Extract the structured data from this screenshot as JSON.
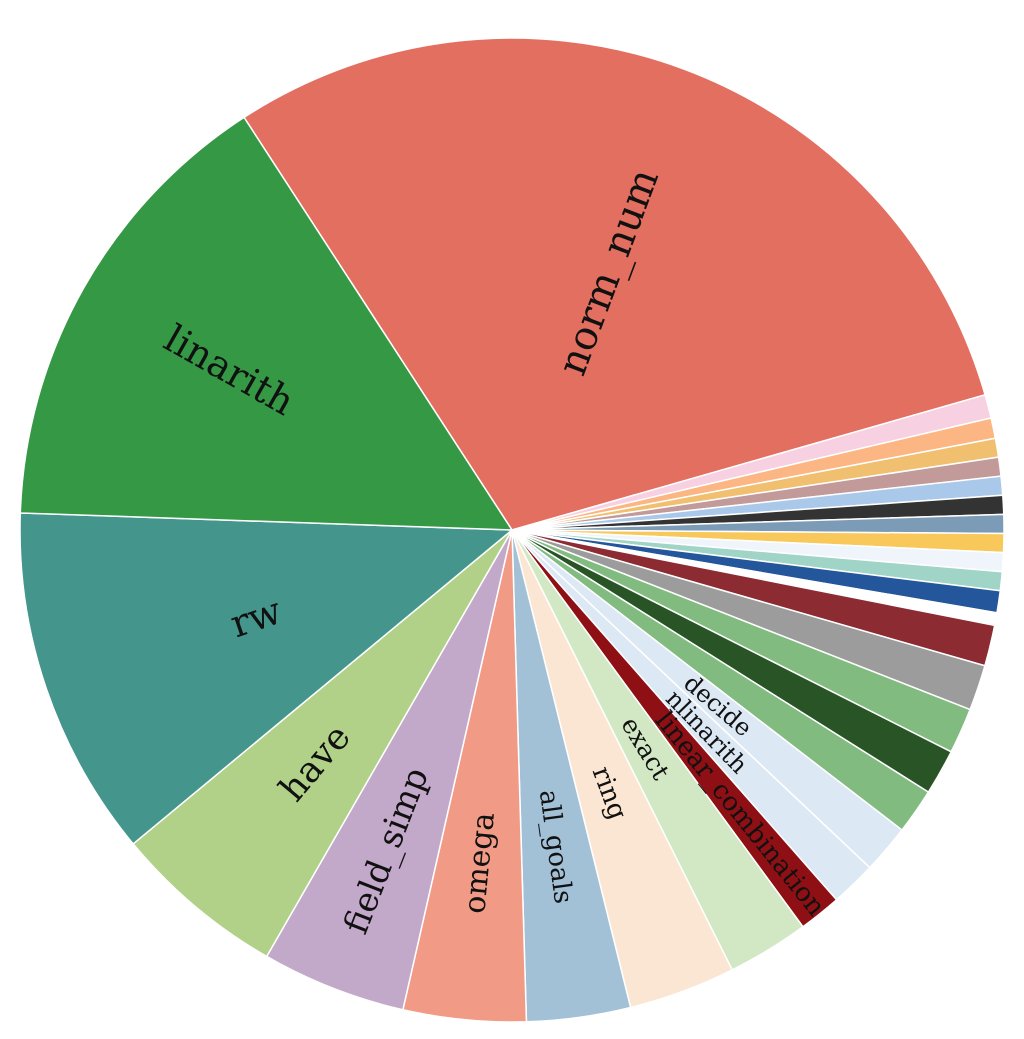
{
  "chart_data": {
    "type": "pie",
    "title": "",
    "start_angle_deg": -123,
    "direction": "clockwise",
    "slices": [
      {
        "label": "norm_num",
        "value": 28.8,
        "color": "#e36f60",
        "show_label": true
      },
      {
        "label": "",
        "value": 0.75,
        "color": "#f7d0e1",
        "show_label": false
      },
      {
        "label": "",
        "value": 0.65,
        "color": "#fcb683",
        "show_label": false
      },
      {
        "label": "",
        "value": 0.6,
        "color": "#f0c070",
        "show_label": false
      },
      {
        "label": "",
        "value": 0.6,
        "color": "#c29a9a",
        "show_label": false
      },
      {
        "label": "",
        "value": 0.6,
        "color": "#aac9ea",
        "show_label": false
      },
      {
        "label": "",
        "value": 0.6,
        "color": "#333333",
        "show_label": false
      },
      {
        "label": "",
        "value": 0.6,
        "color": "#7c9bb7",
        "show_label": false
      },
      {
        "label": "",
        "value": 0.6,
        "color": "#f8c95a",
        "show_label": false
      },
      {
        "label": "",
        "value": 0.6,
        "color": "#eff5fb",
        "show_label": false
      },
      {
        "label": "",
        "value": 0.6,
        "color": "#9fd4c6",
        "show_label": false
      },
      {
        "label": "",
        "value": 0.7,
        "color": "#24569c",
        "show_label": false
      },
      {
        "label": "",
        "value": 0.4,
        "color": "#ffffff",
        "show_label": false
      },
      {
        "label": "",
        "value": 1.3,
        "color": "#8d2b33",
        "show_label": false
      },
      {
        "label": "",
        "value": 1.45,
        "color": "#9c9c9c",
        "show_label": false
      },
      {
        "label": "",
        "value": 1.45,
        "color": "#82bb80",
        "show_label": false
      },
      {
        "label": "",
        "value": 1.45,
        "color": "#285426",
        "show_label": false
      },
      {
        "label": "",
        "value": 1.45,
        "color": "#82bb80",
        "show_label": false
      },
      {
        "label": "decide",
        "value": 1.55,
        "color": "#dde8f5",
        "show_label": true
      },
      {
        "label": "nlinarith",
        "value": 1.45,
        "color": "#dde8f5",
        "show_label": true
      },
      {
        "label": "linear_combination",
        "value": 1.35,
        "color": "#8e0f14",
        "show_label": true
      },
      {
        "label": "exact",
        "value": 2.6,
        "color": "#d2e8c4",
        "show_label": true
      },
      {
        "label": "ring",
        "value": 3.4,
        "color": "#fbe6d3",
        "show_label": true
      },
      {
        "label": "all_goals",
        "value": 3.3,
        "color": "#a2c1d6",
        "show_label": true
      },
      {
        "label": "omega",
        "value": 3.9,
        "color": "#f19b87",
        "show_label": true
      },
      {
        "label": "field_simp",
        "value": 4.6,
        "color": "#c2a8c9",
        "show_label": true
      },
      {
        "label": "have",
        "value": 5.5,
        "color": "#b0d187",
        "show_label": true
      },
      {
        "label": "rw",
        "value": 11.2,
        "color": "#44968d",
        "show_label": true
      },
      {
        "label": "linarith",
        "value": 14.8,
        "color": "#349845",
        "show_label": true
      }
    ]
  }
}
